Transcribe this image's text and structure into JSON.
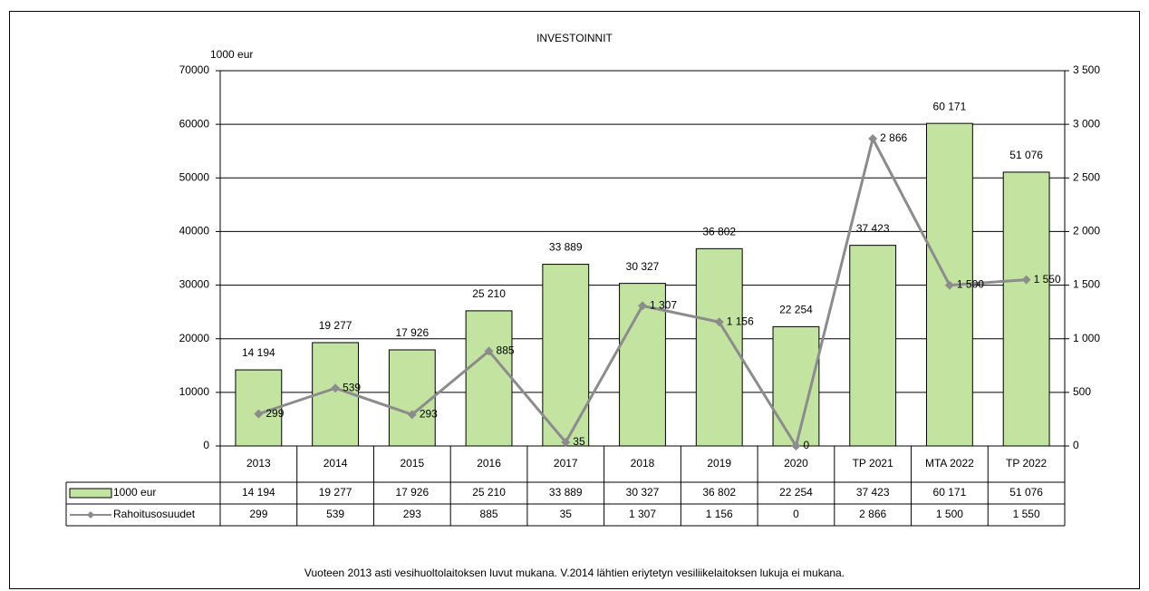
{
  "chart_data": {
    "type": "bar",
    "title": "INVESTOINNIT",
    "y_label": "1000 eur",
    "note": "Vuoteen 2013 asti vesihuoltolaitoksen luvut mukana. V.2014 lähtien eriytetyn vesiliikelaitoksen lukuja ei mukana.",
    "categories": [
      "2013",
      "2014",
      "2015",
      "2016",
      "2017",
      "2018",
      "2019",
      "2020",
      "TP 2021",
      "MTA 2022",
      "TP 2022"
    ],
    "series": [
      {
        "name": "1000 eur",
        "type": "bar",
        "color": "#c3e3a0",
        "values": [
          14194,
          19277,
          17926,
          25210,
          33889,
          30327,
          36802,
          22254,
          37423,
          60171,
          51076
        ],
        "value_labels": [
          "14 194",
          "19 277",
          "17 926",
          "25 210",
          "33 889",
          "30 327",
          "36 802",
          "22 254",
          "37 423",
          "60 171",
          "51 076"
        ]
      },
      {
        "name": "Rahoitusosuudet",
        "type": "line",
        "axis": "y2",
        "color": "#8c8c8c",
        "values": [
          299,
          539,
          293,
          885,
          35,
          1307,
          1156,
          0,
          2866,
          1500,
          1550
        ],
        "value_labels": [
          "299",
          "539",
          "293",
          "885",
          "35",
          "1 307",
          "1 156",
          "0",
          "2 866",
          "1 500",
          "1 550"
        ]
      }
    ],
    "ylim": [
      0,
      70000
    ],
    "yticks": [
      0,
      10000,
      20000,
      30000,
      40000,
      50000,
      60000,
      70000
    ],
    "y2lim": [
      0,
      3500
    ],
    "y2ticks": [
      0,
      500,
      {
        "value": 1000,
        "label": "1 000"
      },
      {
        "value": 1500,
        "label": "1 500"
      },
      {
        "value": 2000,
        "label": "2 000"
      },
      {
        "value": 2500,
        "label": "2 500"
      },
      {
        "value": 3000,
        "label": "3 000"
      },
      {
        "value": 3500,
        "label": "3 500"
      }
    ],
    "grid": true,
    "data_table": true
  }
}
